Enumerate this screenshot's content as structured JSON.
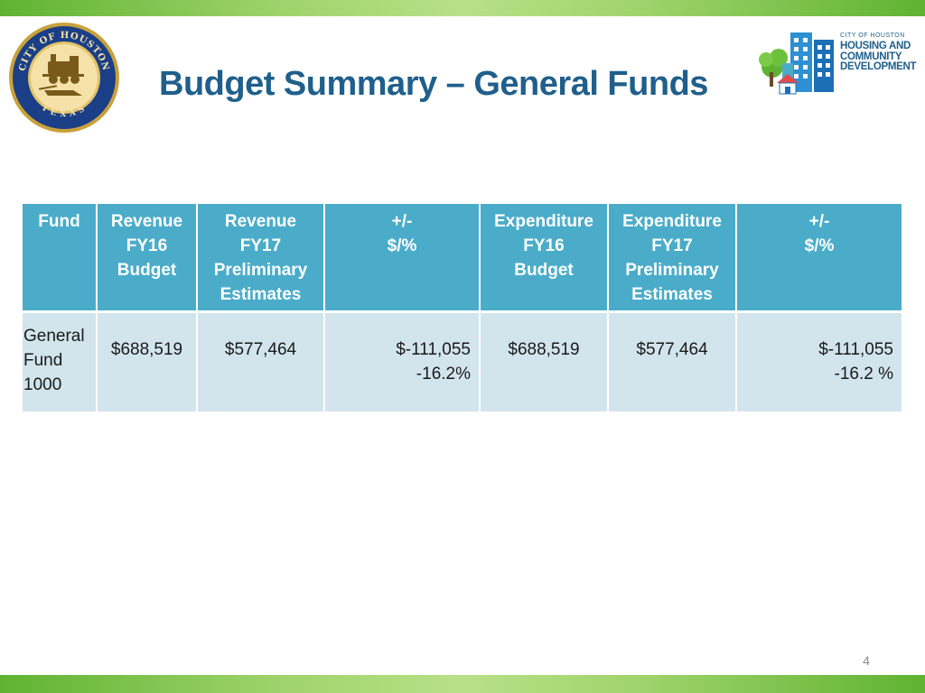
{
  "slide": {
    "title": "Budget Summary – General Funds",
    "page_number": "4"
  },
  "seal": {
    "ring_text_top": "CITY OF HOUSTON",
    "ring_text_bottom": "TEXAS"
  },
  "logo": {
    "line1": "CITY OF HOUSTON",
    "line2": "HOUSING AND",
    "line3": "COMMUNITY",
    "line4": "DEVELOPMENT"
  },
  "table": {
    "headers": [
      {
        "l1": "Fund",
        "l2": "",
        "l3": "",
        "l4": ""
      },
      {
        "l1": "Revenue",
        "l2": "FY16",
        "l3": "Budget",
        "l4": ""
      },
      {
        "l1": "Revenue",
        "l2": "FY17",
        "l3": "Preliminary",
        "l4": "Estimates"
      },
      {
        "l1": "+/-",
        "l2": "$/%",
        "l3": "",
        "l4": ""
      },
      {
        "l1": "Expenditure",
        "l2": "FY16",
        "l3": "Budget",
        "l4": ""
      },
      {
        "l1": "Expenditure",
        "l2": "FY17",
        "l3": "Preliminary",
        "l4": "Estimates"
      },
      {
        "l1": "+/-",
        "l2": "$/%",
        "l3": "",
        "l4": ""
      }
    ],
    "rows": [
      {
        "fund_l1": "General",
        "fund_l2": "Fund",
        "fund_l3": "1000",
        "revenue_fy16": "$688,519",
        "revenue_fy17": "$577,464",
        "revenue_diff_amount": "$-111,055",
        "revenue_diff_pct": "-16.2%",
        "expenditure_fy16": "$688,519",
        "expenditure_fy17": "$577,464",
        "expenditure_diff_amount": "$-111,055",
        "expenditure_diff_pct": "-16.2 %"
      }
    ]
  },
  "colors": {
    "title": "#1f5f8b",
    "header_bg": "#4aacc9",
    "row_bg": "#d2e4ec",
    "green_bar": "#5fb332"
  }
}
